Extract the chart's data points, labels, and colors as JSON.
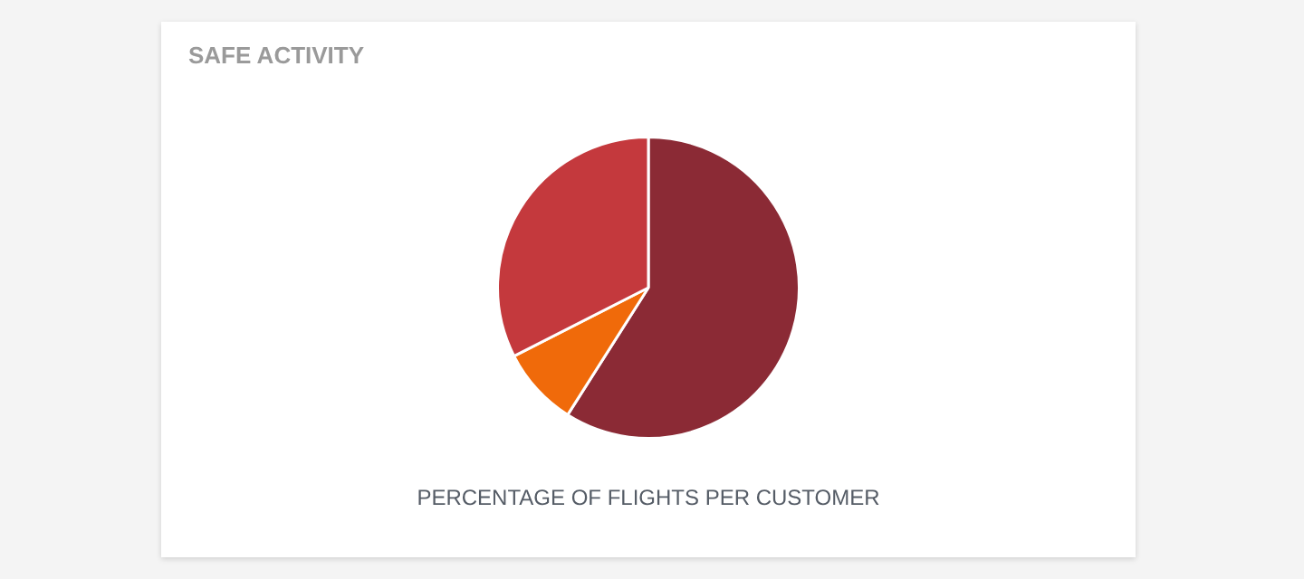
{
  "chart_data": {
    "type": "pie",
    "title": "SAFE ACTIVITY",
    "xlabel": "PERCENTAGE OF FLIGHTS PER CUSTOMER",
    "categories": [
      null,
      null,
      null
    ],
    "values": [
      59,
      8.5,
      32.5
    ],
    "colors": [
      "#8b2a35",
      "#f06a0a",
      "#c4393d"
    ],
    "legend": false
  }
}
